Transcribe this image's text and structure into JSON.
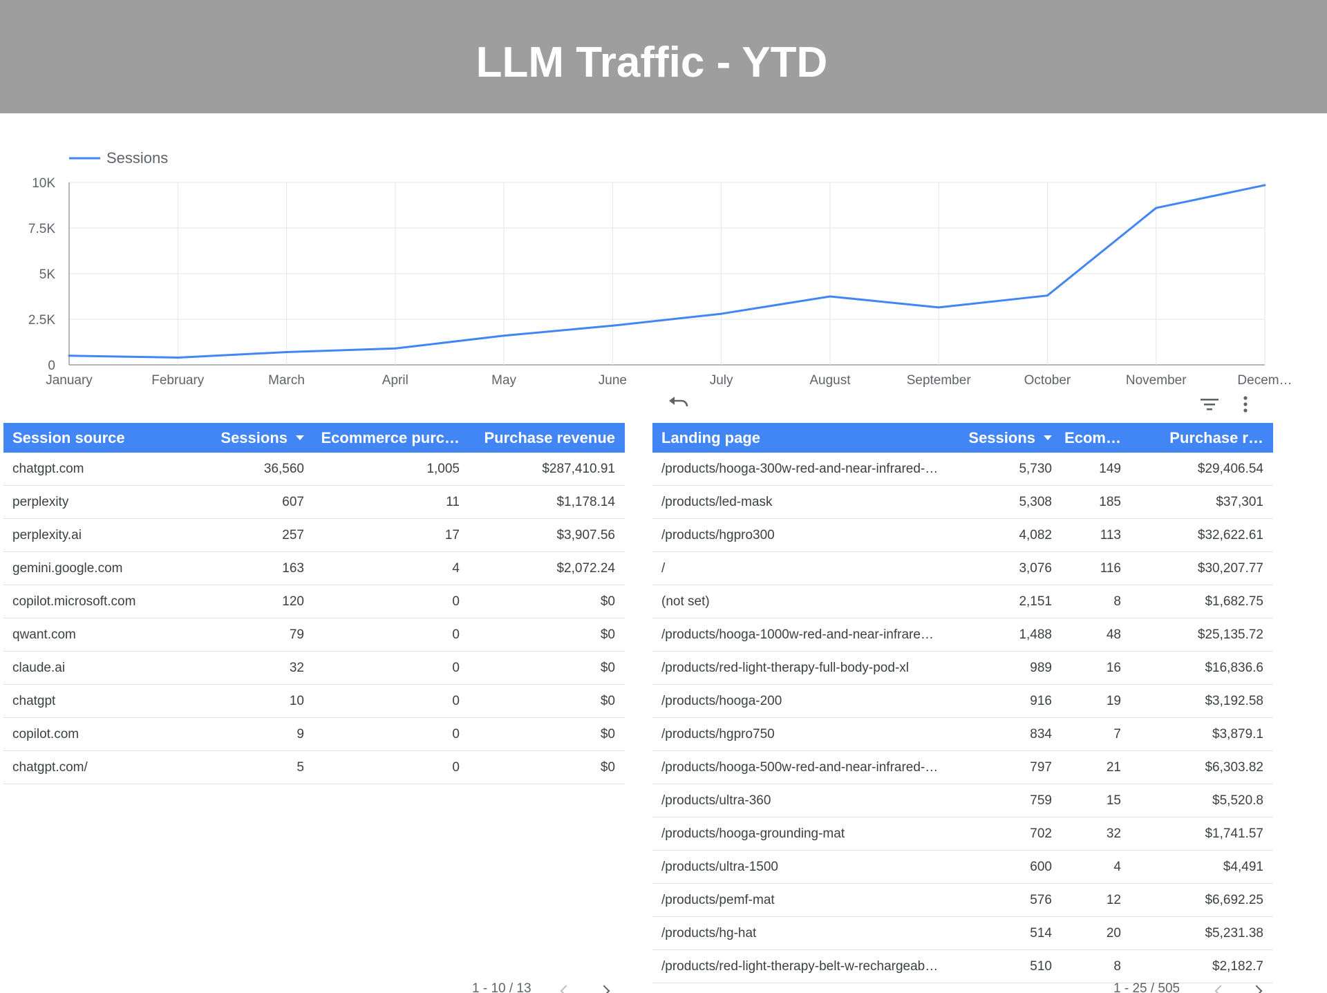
{
  "header": {
    "title": "LLM Traffic - YTD"
  },
  "chart_data": {
    "type": "line",
    "legend": {
      "position": "top-left"
    },
    "grid": true,
    "ylim": [
      0,
      10000
    ],
    "yticks": [
      "0",
      "2.5K",
      "5K",
      "7.5K",
      "10K"
    ],
    "categories": [
      "January",
      "February",
      "March",
      "April",
      "May",
      "June",
      "July",
      "August",
      "September",
      "October",
      "November",
      "Decem…"
    ],
    "series": [
      {
        "name": "Sessions",
        "color": "#4285f4",
        "values": [
          500,
          400,
          700,
          900,
          1600,
          2150,
          2800,
          3750,
          3150,
          3800,
          8600,
          9850
        ]
      }
    ]
  },
  "toolbar": {
    "undo_icon": "undo-icon",
    "filter_icon": "filter-icon",
    "more_icon": "more-vert-icon"
  },
  "sources_table": {
    "headers": {
      "source": "Session source",
      "sessions": "Sessions",
      "purchases": "Ecommerce purc…",
      "revenue": "Purchase revenue"
    },
    "rows": [
      [
        "chatgpt.com",
        "36,560",
        "1,005",
        "$287,410.91"
      ],
      [
        "perplexity",
        "607",
        "11",
        "$1,178.14"
      ],
      [
        "perplexity.ai",
        "257",
        "17",
        "$3,907.56"
      ],
      [
        "gemini.google.com",
        "163",
        "4",
        "$2,072.24"
      ],
      [
        "copilot.microsoft.com",
        "120",
        "0",
        "$0"
      ],
      [
        "qwant.com",
        "79",
        "0",
        "$0"
      ],
      [
        "claude.ai",
        "32",
        "0",
        "$0"
      ],
      [
        "chatgpt",
        "10",
        "0",
        "$0"
      ],
      [
        "copilot.com",
        "9",
        "0",
        "$0"
      ],
      [
        "chatgpt.com/",
        "5",
        "0",
        "$0"
      ]
    ],
    "pager": "1 - 10 / 13"
  },
  "pages_table": {
    "headers": {
      "page": "Landing page",
      "sessions": "Sessions",
      "purchases": "Ecom…",
      "revenue": "Purchase r…"
    },
    "rows": [
      [
        "/products/hooga-300w-red-and-near-infrared-…",
        "5,730",
        "149",
        "$29,406.54"
      ],
      [
        "/products/led-mask",
        "5,308",
        "185",
        "$37,301"
      ],
      [
        "/products/hgpro300",
        "4,082",
        "113",
        "$32,622.61"
      ],
      [
        "/",
        "3,076",
        "116",
        "$30,207.77"
      ],
      [
        "(not set)",
        "2,151",
        "8",
        "$1,682.75"
      ],
      [
        "/products/hooga-1000w-red-and-near-infrare…",
        "1,488",
        "48",
        "$25,135.72"
      ],
      [
        "/products/red-light-therapy-full-body-pod-xl",
        "989",
        "16",
        "$16,836.6"
      ],
      [
        "/products/hooga-200",
        "916",
        "19",
        "$3,192.58"
      ],
      [
        "/products/hgpro750",
        "834",
        "7",
        "$3,879.1"
      ],
      [
        "/products/hooga-500w-red-and-near-infrared-…",
        "797",
        "21",
        "$6,303.82"
      ],
      [
        "/products/ultra-360",
        "759",
        "15",
        "$5,520.8"
      ],
      [
        "/products/hooga-grounding-mat",
        "702",
        "32",
        "$1,741.57"
      ],
      [
        "/products/ultra-1500",
        "600",
        "4",
        "$4,491"
      ],
      [
        "/products/pemf-mat",
        "576",
        "12",
        "$6,692.25"
      ],
      [
        "/products/hg-hat",
        "514",
        "20",
        "$5,231.38"
      ],
      [
        "/products/red-light-therapy-belt-w-rechargeab…",
        "510",
        "8",
        "$2,182.7"
      ]
    ],
    "pager": "1 - 25 / 505"
  }
}
